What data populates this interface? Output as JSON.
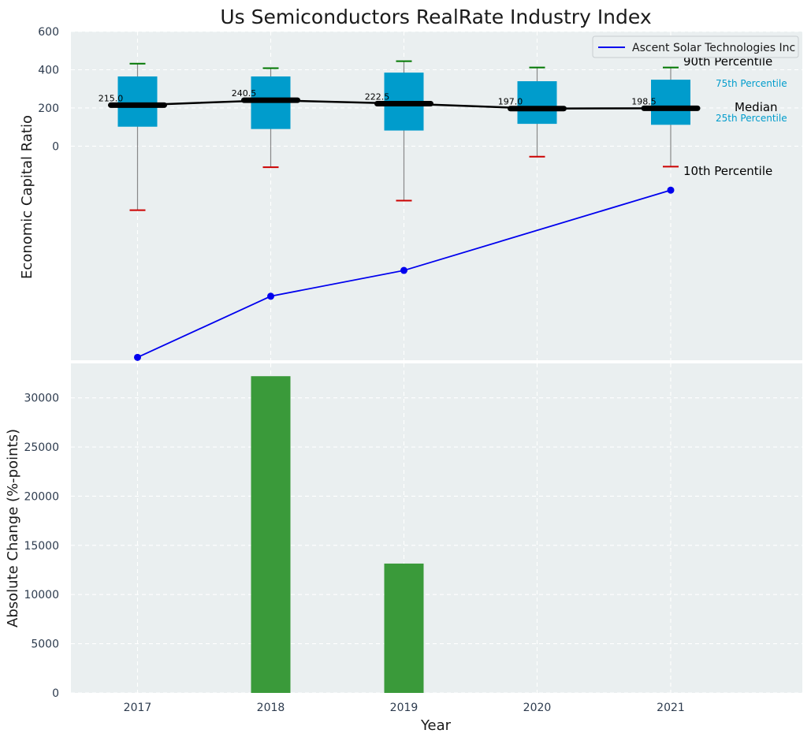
{
  "chart_data": [
    {
      "type": "box",
      "title": "Us Semiconductors RealRate Industry Index",
      "xlabel": "",
      "ylabel": "Economic Capital Ratio",
      "categories": [
        "2017",
        "2018",
        "2019",
        "2020",
        "2021"
      ],
      "ylim": [
        -1120,
        600
      ],
      "yticks": [
        0,
        200,
        400,
        600
      ],
      "grid": true,
      "legend": {
        "position": "top-right",
        "entries": [
          "Ascent Solar Technologies Inc"
        ]
      },
      "percentiles": {
        "p10": [
          -335,
          -110,
          -285,
          -55,
          -107
        ],
        "p25": [
          102,
          90,
          82,
          117,
          112
        ],
        "median": [
          215.0,
          240.5,
          222.5,
          197.0,
          198.5
        ],
        "p75": [
          365,
          365,
          385,
          340,
          348
        ],
        "p90": [
          432,
          408,
          445,
          412,
          412
        ]
      },
      "median_labels": [
        "215.0",
        "240.5",
        "222.5",
        "197.0",
        "198.5"
      ],
      "annotations": [
        "90th Percentile",
        "75th Percentile",
        "Median",
        "25th Percentile",
        "10th Percentile"
      ],
      "series": [
        {
          "name": "Ascent Solar Technologies Inc",
          "x": [
            "2017",
            "2018",
            "2019",
            "2021"
          ],
          "values": [
            -1105,
            -785,
            -650,
            -230
          ],
          "color": "#0000ee"
        }
      ],
      "colors": {
        "box": "#009ccc",
        "median": "#000000",
        "p90_cap": "#007700",
        "p10_cap": "#cc0000",
        "annotation_inner": "#009ccc"
      }
    },
    {
      "type": "bar",
      "xlabel": "Year",
      "ylabel": "Absolute Change (%-points)",
      "categories": [
        "2017",
        "2018",
        "2019",
        "2020",
        "2021"
      ],
      "values": [
        0,
        32200,
        13150,
        0,
        0
      ],
      "ylim": [
        0,
        33500
      ],
      "yticks": [
        0,
        5000,
        10000,
        15000,
        20000,
        25000,
        30000
      ],
      "grid": true,
      "colors": {
        "bar": "#3a9a3a"
      }
    }
  ]
}
